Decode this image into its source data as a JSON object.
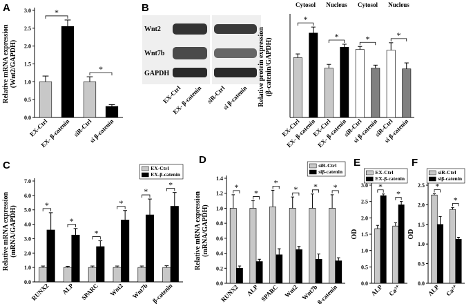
{
  "blot": {
    "panel": "B",
    "bands": [
      "Wnt2",
      "Wnt7b",
      "GAPDH"
    ],
    "lanes": [
      "EX-Ctrl",
      "EX- β-catenin",
      "siR-Ctrl",
      "si β-catenin"
    ]
  },
  "chart_data": [
    {
      "type": "bar",
      "panel": "A",
      "ylabel": [
        "Relative mRNA expression",
        "(Wnt2/GAPDH)"
      ],
      "categories": [
        "EX-Ctrl",
        "EX- β-catenin",
        "siR-Ctrl",
        "si β-catenin"
      ],
      "values": [
        1.0,
        2.55,
        1.0,
        0.31
      ],
      "errors": [
        0.16,
        0.18,
        0.14,
        0.05
      ],
      "colors": [
        "#c8c8c8",
        "#000000",
        "#c8c8c8",
        "#000000"
      ],
      "ylim": [
        0,
        3.0
      ],
      "yticks": [
        {
          "value": 0,
          "label": "0.0"
        },
        {
          "value": 0.5,
          "label": "0.5"
        },
        {
          "value": 1,
          "label": "1.0"
        },
        {
          "value": 1.5,
          "label": "1.5"
        },
        {
          "value": 2,
          "label": "2.0"
        },
        {
          "value": 2.5,
          "label": "2.5"
        },
        {
          "value": 3,
          "label": "3.0"
        }
      ],
      "significance": [
        "*",
        "*"
      ]
    },
    {
      "type": "bar",
      "ylabel": [
        "Relative protein expression",
        "(β-catenin/GAPDH)"
      ],
      "groups": [
        "Cytosol",
        "Nucleus",
        "Cytosol",
        "Nucleus"
      ],
      "categories": [
        "EX-Ctrl",
        "EX- β-catenin",
        "EX-Ctrl",
        "EX- β-catenin",
        "siR-Ctrl",
        "si β-catenin",
        "siR-Ctrl",
        "si β-catenin"
      ],
      "values": [
        0.8,
        1.13,
        0.66,
        0.94,
        0.91,
        0.66,
        0.9,
        0.65
      ],
      "errors": [
        0.05,
        0.08,
        0.05,
        0.04,
        0.04,
        0.04,
        0.1,
        0.08
      ],
      "colors": [
        "#c8c8c8",
        "#000000",
        "#c8c8c8",
        "#000000",
        "#ffffff",
        "#808080",
        "#ffffff",
        "#808080"
      ],
      "ylim": [
        0,
        1.35
      ],
      "significance": [
        "*",
        "*",
        "*",
        "*"
      ]
    },
    {
      "type": "bar",
      "panel": "C",
      "ylabel": [
        "Relative mRNA expression",
        "(mRNA/GAPDH)"
      ],
      "categories": [
        "RUNX2",
        "ALP",
        "SPARC",
        "Wnt2",
        "Wnt7b",
        "β-catenin"
      ],
      "series": [
        {
          "name": "EX-Ctrl",
          "color": "#c8c8c8",
          "values": [
            1.0,
            1.0,
            1.0,
            1.0,
            1.0,
            1.0
          ],
          "errors": [
            0.1,
            0.08,
            0.1,
            0.1,
            0.1,
            0.12
          ]
        },
        {
          "name": "EX-β-catenin",
          "color": "#000000",
          "values": [
            3.6,
            3.25,
            2.45,
            4.3,
            4.65,
            5.25
          ],
          "errors": [
            1.2,
            0.45,
            0.4,
            0.65,
            1.1,
            0.95
          ]
        }
      ],
      "ylim": [
        0,
        7.0
      ],
      "yticks": [
        {
          "value": 0,
          "label": "0.0"
        },
        {
          "value": 1,
          "label": "1.0"
        },
        {
          "value": 2,
          "label": "2.0"
        },
        {
          "value": 3,
          "label": "3.0"
        },
        {
          "value": 4,
          "label": "4.0"
        },
        {
          "value": 5,
          "label": "5.0"
        },
        {
          "value": 6,
          "label": "6.0"
        },
        {
          "value": 7,
          "label": "7.0"
        }
      ],
      "legend": "upper right",
      "significance": [
        "*",
        "*",
        "*",
        "*",
        "*",
        "*"
      ]
    },
    {
      "type": "bar",
      "panel": "D",
      "ylabel": [
        "Relative mRNA expression",
        "(mRNA/GAPDH)"
      ],
      "categories": [
        "RUNX2",
        "ALP",
        "SPARC",
        "Wnt2",
        "Wnt7b",
        "β-catenin"
      ],
      "series": [
        {
          "name": "siR-Ctrl",
          "color": "#c8c8c8",
          "values": [
            1.0,
            1.0,
            1.02,
            1.0,
            1.0,
            1.0
          ],
          "errors": [
            0.18,
            0.1,
            0.22,
            0.15,
            0.19,
            0.18
          ]
        },
        {
          "name": "siβ-catenin",
          "color": "#000000",
          "values": [
            0.2,
            0.29,
            0.38,
            0.45,
            0.32,
            0.3
          ],
          "errors": [
            0.03,
            0.03,
            0.08,
            0.04,
            0.07,
            0.04
          ]
        }
      ],
      "ylim": [
        0,
        1.4
      ],
      "yticks": [
        {
          "value": 0,
          "label": "0.0"
        },
        {
          "value": 0.2,
          "label": "0.2"
        },
        {
          "value": 0.4,
          "label": "0.4"
        },
        {
          "value": 0.6,
          "label": "0.6"
        },
        {
          "value": 0.8,
          "label": "0.8"
        },
        {
          "value": 1,
          "label": "1.0"
        },
        {
          "value": 1.2,
          "label": "1.2"
        },
        {
          "value": 1.4,
          "label": "1.4"
        }
      ],
      "legend": "upper right",
      "significance": [
        "*",
        "*",
        "*",
        "*",
        "*",
        "*"
      ]
    },
    {
      "type": "bar",
      "panel": "E",
      "ylabel": [
        "OD"
      ],
      "categories": [
        "ALP",
        "Ca²⁺"
      ],
      "series": [
        {
          "name": "EX-Ctrl",
          "color": "#c8c8c8",
          "values": [
            1.67,
            1.75
          ],
          "errors": [
            0.1,
            0.1
          ]
        },
        {
          "name": "EX-β-catenin",
          "color": "#000000",
          "values": [
            2.68,
            2.4
          ],
          "errors": [
            0.05,
            0.1
          ]
        }
      ],
      "ylim": [
        0,
        3.0
      ],
      "yticks": [
        {
          "value": 0,
          "label": "0.0"
        },
        {
          "value": 0.5,
          "label": "0.5"
        },
        {
          "value": 1,
          "label": "1.0"
        },
        {
          "value": 1.5,
          "label": "1.5"
        },
        {
          "value": 2,
          "label": "2.0"
        },
        {
          "value": 2.5,
          "label": "2.5"
        },
        {
          "value": 3,
          "label": "3.0"
        }
      ],
      "legend": "upper right",
      "significance": [
        "*",
        "*"
      ]
    },
    {
      "type": "bar",
      "panel": "F",
      "ylabel": [
        "OD"
      ],
      "categories": [
        "ALP",
        "Ca²⁺"
      ],
      "series": [
        {
          "name": "siR-Ctrl",
          "color": "#c8c8c8",
          "values": [
            2.25,
            1.88
          ],
          "errors": [
            0.03,
            0.05
          ]
        },
        {
          "name": "siβ-catenin",
          "color": "#000000",
          "values": [
            1.5,
            1.12
          ],
          "errors": [
            0.2,
            0.05
          ]
        }
      ],
      "ylim": [
        0,
        2.5
      ],
      "yticks": [
        {
          "value": 0,
          "label": "0.0"
        },
        {
          "value": 0.5,
          "label": "0.5"
        },
        {
          "value": 1,
          "label": "1.0"
        },
        {
          "value": 1.5,
          "label": "1.5"
        },
        {
          "value": 2,
          "label": "2.0"
        },
        {
          "value": 2.5,
          "label": "2.5"
        }
      ],
      "legend": "upper right",
      "significance": [
        "*",
        "*"
      ]
    }
  ]
}
